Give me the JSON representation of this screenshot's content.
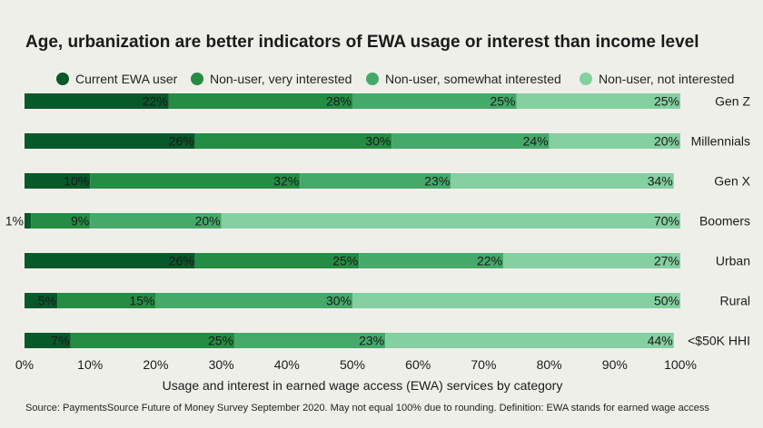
{
  "title": "Age, urbanization are better indicators of EWA usage or interest than income level",
  "footnote": "Source: PaymentsSource Future of Money Survey September 2020. May not equal 100% due to rounding. Definition: EWA stands for earned wage access",
  "chart_data": {
    "type": "bar",
    "orientation": "horizontal",
    "stacked": true,
    "title": "Age, urbanization are better indicators of EWA usage or interest than income level",
    "xlabel": "Usage and interest in earned wage access (EWA) services by category",
    "ylabel": "",
    "xlim": [
      0,
      100
    ],
    "x_ticks": [
      "0%",
      "10%",
      "20%",
      "30%",
      "40%",
      "50%",
      "60%",
      "70%",
      "80%",
      "90%",
      "100%"
    ],
    "legend_position": "top",
    "grid": false,
    "categories": [
      "Gen Z",
      "Millennials",
      "Gen X",
      "Boomers",
      "Urban",
      "Rural",
      "<$50K HHI"
    ],
    "series": [
      {
        "name": "Current EWA user",
        "color": "#08592a",
        "values": [
          22,
          26,
          10,
          1,
          26,
          5,
          7
        ]
      },
      {
        "name": "Non-user, very interested",
        "color": "#258c43",
        "values": [
          28,
          30,
          32,
          9,
          25,
          15,
          25
        ]
      },
      {
        "name": "Non-user, somewhat interested",
        "color": "#45a96a",
        "values": [
          25,
          24,
          23,
          20,
          22,
          30,
          23
        ]
      },
      {
        "name": "Non-user, not interested",
        "color": "#84d0a0",
        "values": [
          25,
          20,
          34,
          70,
          27,
          50,
          44
        ]
      }
    ]
  }
}
